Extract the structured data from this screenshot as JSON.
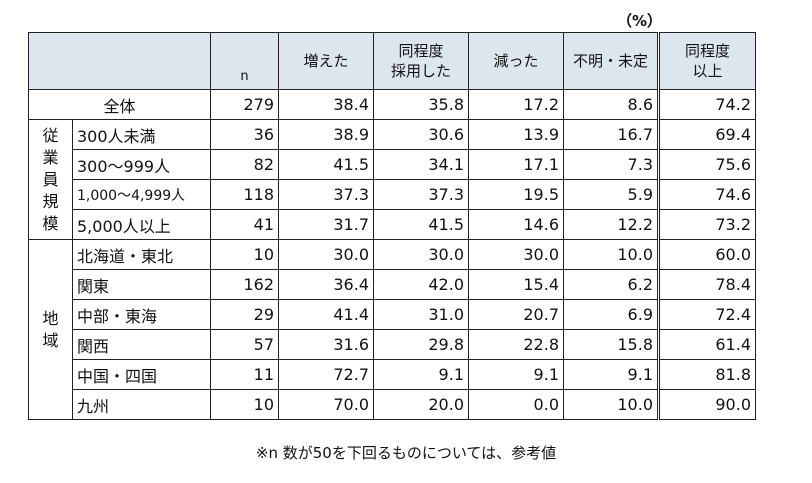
{
  "unit": "（%）",
  "header": {
    "n": "n",
    "cols": [
      "増えた",
      "同程度\n採用した",
      "減った",
      "不明・未定",
      "同程度\n以上"
    ]
  },
  "total": {
    "label": "全体",
    "values": [
      "279",
      "38.4",
      "35.8",
      "17.2",
      "8.6",
      "74.2"
    ]
  },
  "groups": [
    {
      "name": "従業員規模",
      "rows": [
        {
          "label": "300人未満",
          "values": [
            "36",
            "38.9",
            "30.6",
            "13.9",
            "16.7",
            "69.4"
          ]
        },
        {
          "label": "300～999人",
          "values": [
            "82",
            "41.5",
            "34.1",
            "17.1",
            "7.3",
            "75.6"
          ]
        },
        {
          "label": "1,000～4,999人",
          "values": [
            "118",
            "37.3",
            "37.3",
            "19.5",
            "5.9",
            "74.6"
          ]
        },
        {
          "label": "5,000人以上",
          "values": [
            "41",
            "31.7",
            "41.5",
            "14.6",
            "12.2",
            "73.2"
          ]
        }
      ]
    },
    {
      "name": "地域",
      "rows": [
        {
          "label": "北海道・東北",
          "values": [
            "10",
            "30.0",
            "30.0",
            "30.0",
            "10.0",
            "60.0"
          ]
        },
        {
          "label": "関東",
          "values": [
            "162",
            "36.4",
            "42.0",
            "15.4",
            "6.2",
            "78.4"
          ]
        },
        {
          "label": "中部・東海",
          "values": [
            "29",
            "41.4",
            "31.0",
            "20.7",
            "6.9",
            "72.4"
          ]
        },
        {
          "label": "関西",
          "values": [
            "57",
            "31.6",
            "29.8",
            "22.8",
            "15.8",
            "61.4"
          ]
        },
        {
          "label": "中国・四国",
          "values": [
            "11",
            "72.7",
            "9.1",
            "9.1",
            "9.1",
            "81.8"
          ]
        },
        {
          "label": "九州",
          "values": [
            "10",
            "70.0",
            "20.0",
            "0.0",
            "10.0",
            "90.0"
          ]
        }
      ]
    }
  ],
  "note": "※n 数が50を下回るものについては、参考値"
}
